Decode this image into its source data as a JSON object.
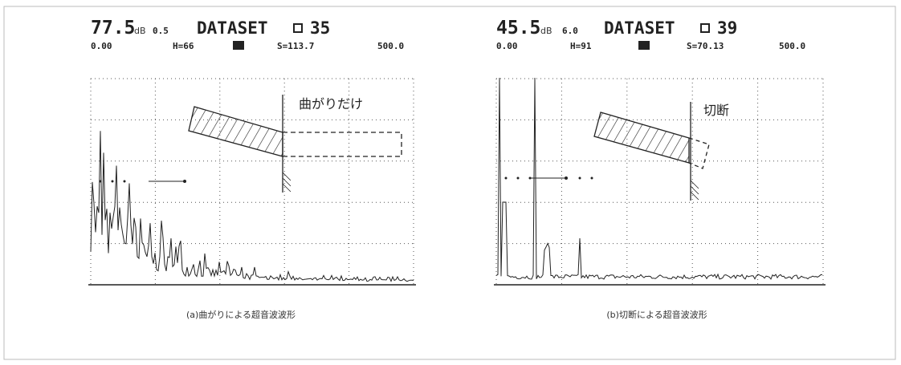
{
  "panels": [
    {
      "gain": "77.5",
      "gain_unit": "dB",
      "range_setting": "0.5",
      "dataset_label": "DATASET",
      "dataset_number": "35",
      "start": "0.00",
      "height": "H=66",
      "distance": "S=113.7",
      "end": "500.0",
      "annotation": "曲がりだけ",
      "caption": "(a)曲がりによる超音波波形"
    },
    {
      "gain": "45.5",
      "gain_unit": "dB",
      "range_setting": "6.0",
      "dataset_label": "DATASET",
      "dataset_number": "39",
      "start": "0.00",
      "height": "H=91",
      "distance": "S=70.13",
      "end": "500.0",
      "annotation": "切断",
      "caption": "(b)切断による超音波波形"
    }
  ]
}
